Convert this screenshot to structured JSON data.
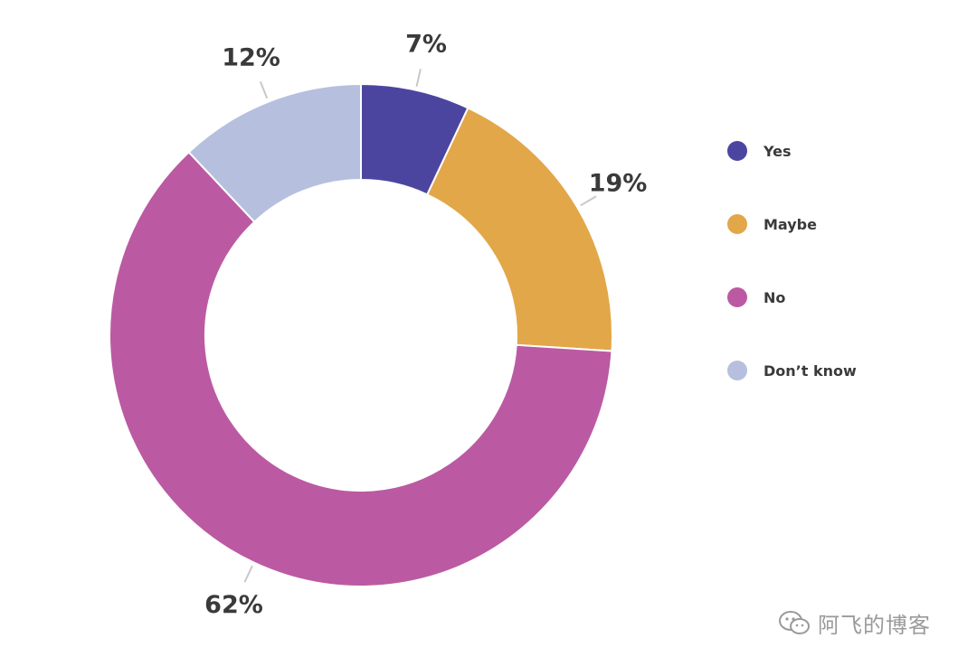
{
  "chart_data": {
    "type": "pie",
    "categories": [
      "Yes",
      "Maybe",
      "No",
      "Don’t know"
    ],
    "values": [
      7,
      19,
      62,
      12
    ],
    "labels": [
      "7%",
      "19%",
      "62%",
      "12%"
    ],
    "colors": [
      "#4c45a0",
      "#e2a748",
      "#bb5aa2",
      "#b6c0de"
    ],
    "donut": true,
    "legend_position": "right",
    "title": "",
    "xlabel": "",
    "ylabel": ""
  },
  "legend": {
    "items": [
      {
        "label": "Yes",
        "color": "#4c45a0"
      },
      {
        "label": "Maybe",
        "color": "#e2a748"
      },
      {
        "label": "No",
        "color": "#bb5aa2"
      },
      {
        "label": "Don’t know",
        "color": "#b6c0de"
      }
    ]
  },
  "watermark": {
    "text": "阿飞的博客",
    "icon": "wechat-icon"
  }
}
